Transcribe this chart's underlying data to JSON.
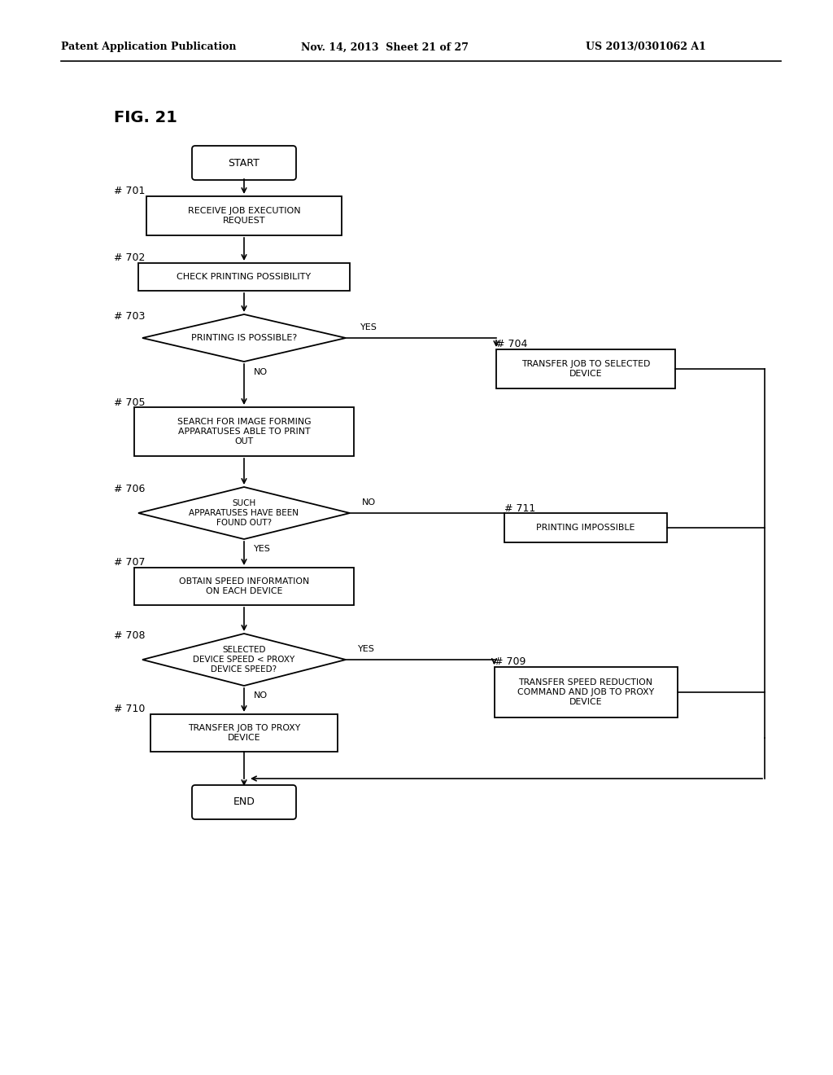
{
  "bg_color": "#ffffff",
  "header_left": "Patent Application Publication",
  "header_mid": "Nov. 14, 2013  Sheet 21 of 27",
  "header_right": "US 2013/0301062 A1",
  "fig_label": "FIG. 21"
}
